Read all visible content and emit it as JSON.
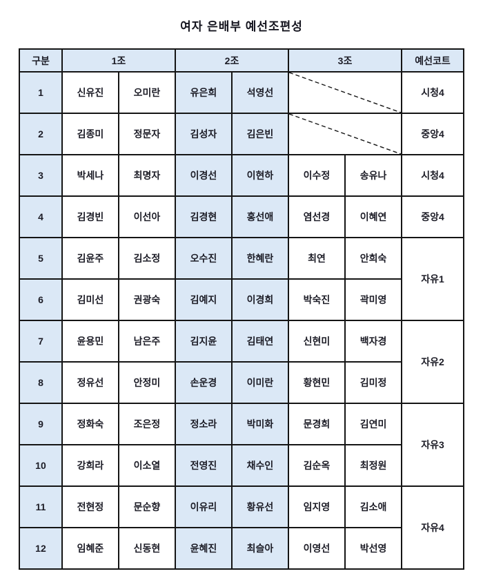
{
  "title": "여자 은배부 예선조편성",
  "colors": {
    "cell_highlight_blue": "#dbe8f6",
    "border_black": "#141414",
    "text": "#1c1c26",
    "page_background": "#ffffff"
  },
  "table": {
    "headers": {
      "category": "구분",
      "group1": "1조",
      "group2": "2조",
      "group3": "3조",
      "court": "예선코트"
    },
    "rows": [
      {
        "no": "1",
        "g1": [
          "신유진",
          "오미란"
        ],
        "g2": [
          "유은희",
          "석영선"
        ],
        "g3": null,
        "court": {
          "label": "시청4",
          "span": 1
        }
      },
      {
        "no": "2",
        "g1": [
          "김종미",
          "정문자"
        ],
        "g2": [
          "김성자",
          "김은빈"
        ],
        "g3": null,
        "court": {
          "label": "중앙4",
          "span": 1
        }
      },
      {
        "no": "3",
        "g1": [
          "박세나",
          "최명자"
        ],
        "g2": [
          "이경선",
          "이현하"
        ],
        "g3": [
          "이수정",
          "송유나"
        ],
        "court": {
          "label": "시청4",
          "span": 1
        }
      },
      {
        "no": "4",
        "g1": [
          "김경빈",
          "이선아"
        ],
        "g2": [
          "김경현",
          "홍선애"
        ],
        "g3": [
          "염선경",
          "이혜연"
        ],
        "court": {
          "label": "중앙4",
          "span": 1
        }
      },
      {
        "no": "5",
        "g1": [
          "김윤주",
          "김소정"
        ],
        "g2": [
          "오수진",
          "한혜란"
        ],
        "g3": [
          "최연",
          "안희숙"
        ],
        "court": {
          "label": "자유1",
          "span": 2
        }
      },
      {
        "no": "6",
        "g1": [
          "김미선",
          "권광숙"
        ],
        "g2": [
          "김예지",
          "이경희"
        ],
        "g3": [
          "박숙진",
          "곽미영"
        ],
        "court": null
      },
      {
        "no": "7",
        "g1": [
          "윤용민",
          "남은주"
        ],
        "g2": [
          "김지윤",
          "김태연"
        ],
        "g3": [
          "신현미",
          "백자경"
        ],
        "court": {
          "label": "자유2",
          "span": 2
        }
      },
      {
        "no": "8",
        "g1": [
          "정유선",
          "안정미"
        ],
        "g2": [
          "손운경",
          "이미란"
        ],
        "g3": [
          "황현민",
          "김미정"
        ],
        "court": null
      },
      {
        "no": "9",
        "g1": [
          "정화숙",
          "조은정"
        ],
        "g2": [
          "정소라",
          "박미화"
        ],
        "g3": [
          "문경희",
          "김연미"
        ],
        "court": {
          "label": "자유3",
          "span": 2
        }
      },
      {
        "no": "10",
        "g1": [
          "강희라",
          "이소열"
        ],
        "g2": [
          "전영진",
          "채수인"
        ],
        "g3": [
          "김순옥",
          "최정원"
        ],
        "court": null
      },
      {
        "no": "11",
        "g1": [
          "전현정",
          "문순향"
        ],
        "g2": [
          "이유리",
          "황유선"
        ],
        "g3": [
          "임지영",
          "김소애"
        ],
        "court": {
          "label": "자유4",
          "span": 2
        }
      },
      {
        "no": "12",
        "g1": [
          "임혜준",
          "신동현"
        ],
        "g2": [
          "윤혜진",
          "최슬아"
        ],
        "g3": [
          "이영선",
          "박선영"
        ],
        "court": null
      }
    ]
  }
}
